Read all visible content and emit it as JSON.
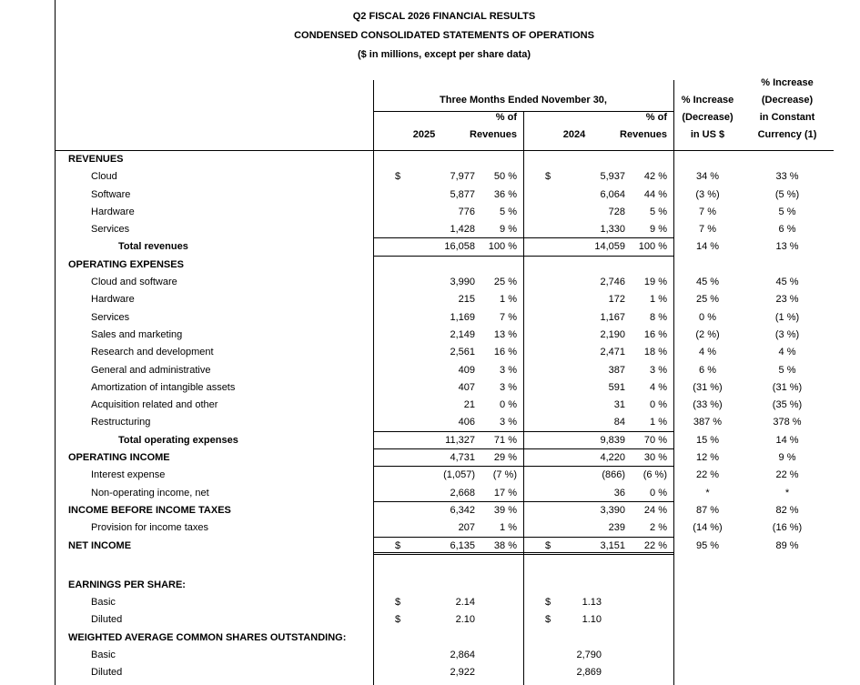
{
  "title": {
    "line1": "Q2 FISCAL 2026 FINANCIAL RESULTS",
    "line2": "CONDENSED CONSOLIDATED STATEMENTS OF OPERATIONS",
    "line3": "($ in millions, except per share data)"
  },
  "header": {
    "period_group": "Three Months Ended November 30,",
    "year1": "2025",
    "year2": "2024",
    "pct_of": "% of",
    "revenues": "Revenues",
    "us_lines": [
      "% Increase",
      "(Decrease)",
      "in US $"
    ],
    "cc_lines": [
      "% Increase",
      "(Decrease)",
      "in Constant",
      "Currency (1)"
    ]
  },
  "rows": [
    {
      "label": "REVENUES",
      "indent": 0,
      "bold": true
    },
    {
      "label": "Cloud",
      "indent": 1,
      "d1": "$",
      "v1": "7,977",
      "p1": "50 %",
      "d2": "$",
      "v2": "5,937",
      "p2": "42 %",
      "us": "34 %",
      "cc": "33 %"
    },
    {
      "label": "Software",
      "indent": 1,
      "v1": "5,877",
      "p1": "36 %",
      "v2": "6,064",
      "p2": "44 %",
      "us": "(3 %)",
      "cc": "(5 %)"
    },
    {
      "label": "Hardware",
      "indent": 1,
      "v1": "776",
      "p1": "5 %",
      "v2": "728",
      "p2": "5 %",
      "us": "7 %",
      "cc": "5 %"
    },
    {
      "label": "Services",
      "indent": 1,
      "v1": "1,428",
      "p1": "9 %",
      "v2": "1,330",
      "p2": "9 %",
      "us": "7 %",
      "cc": "6 %",
      "rule": "single"
    },
    {
      "label": "Total revenues",
      "indent": 2,
      "bold": true,
      "v1": "16,058",
      "p1": "100 %",
      "v2": "14,059",
      "p2": "100 %",
      "us": "14 %",
      "cc": "13 %",
      "rule": "single"
    },
    {
      "label": "OPERATING EXPENSES",
      "indent": 0,
      "bold": true
    },
    {
      "label": "Cloud and software",
      "indent": 1,
      "v1": "3,990",
      "p1": "25 %",
      "v2": "2,746",
      "p2": "19 %",
      "us": "45 %",
      "cc": "45 %"
    },
    {
      "label": "Hardware",
      "indent": 1,
      "v1": "215",
      "p1": "1 %",
      "v2": "172",
      "p2": "1 %",
      "us": "25 %",
      "cc": "23 %"
    },
    {
      "label": "Services",
      "indent": 1,
      "v1": "1,169",
      "p1": "7 %",
      "v2": "1,167",
      "p2": "8 %",
      "us": "0 %",
      "cc": "(1 %)"
    },
    {
      "label": "Sales and marketing",
      "indent": 1,
      "v1": "2,149",
      "p1": "13 %",
      "v2": "2,190",
      "p2": "16 %",
      "us": "(2 %)",
      "cc": "(3 %)"
    },
    {
      "label": "Research and development",
      "indent": 1,
      "v1": "2,561",
      "p1": "16 %",
      "v2": "2,471",
      "p2": "18 %",
      "us": "4 %",
      "cc": "4 %"
    },
    {
      "label": "General and administrative",
      "indent": 1,
      "v1": "409",
      "p1": "3 %",
      "v2": "387",
      "p2": "3 %",
      "us": "6 %",
      "cc": "5 %"
    },
    {
      "label": "Amortization of intangible assets",
      "indent": 1,
      "v1": "407",
      "p1": "3 %",
      "v2": "591",
      "p2": "4 %",
      "us": "(31 %)",
      "cc": "(31 %)"
    },
    {
      "label": "Acquisition related and other",
      "indent": 1,
      "v1": "21",
      "p1": "0 %",
      "v2": "31",
      "p2": "0 %",
      "us": "(33 %)",
      "cc": "(35 %)"
    },
    {
      "label": "Restructuring",
      "indent": 1,
      "v1": "406",
      "p1": "3 %",
      "v2": "84",
      "p2": "1 %",
      "us": "387 %",
      "cc": "378 %",
      "rule": "single"
    },
    {
      "label": "Total operating expenses",
      "indent": 2,
      "bold": true,
      "v1": "11,327",
      "p1": "71 %",
      "v2": "9,839",
      "p2": "70 %",
      "us": "15 %",
      "cc": "14 %",
      "rule": "single"
    },
    {
      "label": "OPERATING INCOME",
      "indent": 0,
      "bold": true,
      "v1": "4,731",
      "p1": "29 %",
      "v2": "4,220",
      "p2": "30 %",
      "us": "12 %",
      "cc": "9 %",
      "rule": "single"
    },
    {
      "label": "Interest expense",
      "indent": 1,
      "v1": "(1,057)",
      "p1": "(7 %)",
      "v2": "(866)",
      "p2": "(6 %)",
      "us": "22 %",
      "cc": "22 %"
    },
    {
      "label": "Non-operating income, net",
      "indent": 1,
      "v1": "2,668",
      "p1": "17 %",
      "v2": "36",
      "p2": "0 %",
      "us": "*",
      "cc": "*",
      "rule": "single"
    },
    {
      "label": "INCOME BEFORE INCOME TAXES",
      "indent": 0,
      "bold": true,
      "v1": "6,342",
      "p1": "39 %",
      "v2": "3,390",
      "p2": "24 %",
      "us": "87 %",
      "cc": "82 %"
    },
    {
      "label": "Provision for income taxes",
      "indent": 1,
      "v1": "207",
      "p1": "1 %",
      "v2": "239",
      "p2": "2 %",
      "us": "(14 %)",
      "cc": "(16 %)",
      "rule": "single"
    },
    {
      "label": "NET INCOME",
      "indent": 0,
      "bold": true,
      "d1": "$",
      "v1": "6,135",
      "p1": "38 %",
      "d2": "$",
      "v2": "3,151",
      "p2": "22 %",
      "us": "95 %",
      "cc": "89 %",
      "rule": "double"
    },
    {
      "spacer": true
    },
    {
      "label": "EARNINGS PER SHARE:",
      "indent": 0,
      "bold": true
    },
    {
      "label": "Basic",
      "indent": 1,
      "d1": "$",
      "v1": "2.14",
      "d2": "$",
      "v2": "1.13",
      "pad2": true
    },
    {
      "label": "Diluted",
      "indent": 1,
      "d1": "$",
      "v1": "2.10",
      "d2": "$",
      "v2": "1.10",
      "pad2": true
    },
    {
      "label": "WEIGHTED AVERAGE COMMON SHARES OUTSTANDING:",
      "indent": 0,
      "bold": true
    },
    {
      "label": "Basic",
      "indent": 1,
      "v1": "2,864",
      "v2": "2,790",
      "pad2": true
    },
    {
      "label": "Diluted",
      "indent": 1,
      "v1": "2,922",
      "v2": "2,869",
      "pad2": true
    }
  ]
}
